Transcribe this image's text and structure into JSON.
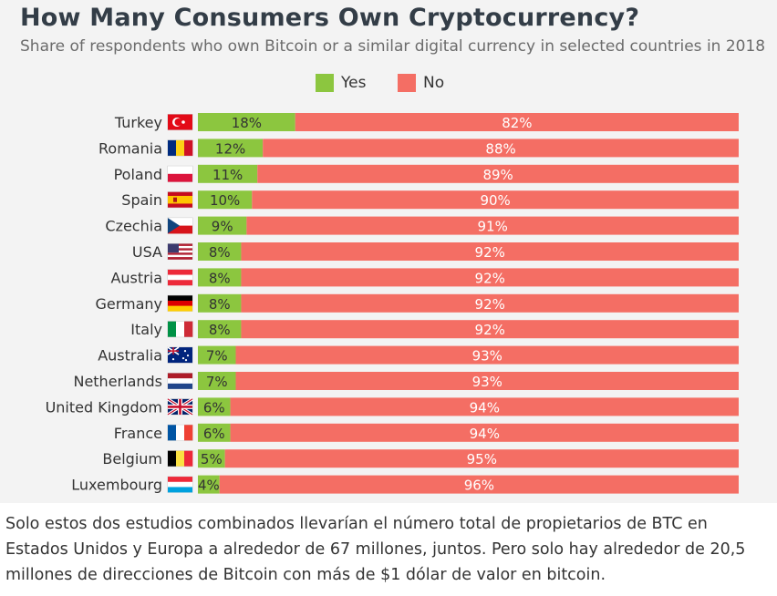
{
  "header": {
    "title": "How Many Consumers Own Cryptocurrency?",
    "subtitle": "Share of respondents who own Bitcoin or a similar digital currency in selected countries in 2018"
  },
  "legend": {
    "yes_label": "Yes",
    "no_label": "No"
  },
  "colors": {
    "yes": "#8cc63f",
    "no": "#f46e64",
    "background": "#f3f3f3"
  },
  "chart_data": {
    "type": "bar",
    "orientation": "horizontal",
    "stacked": true,
    "title": "How Many Consumers Own Cryptocurrency?",
    "subtitle": "Share of respondents who own Bitcoin or a similar digital currency in selected countries in 2018",
    "categories": [
      "Turkey",
      "Romania",
      "Poland",
      "Spain",
      "Czechia",
      "USA",
      "Austria",
      "Germany",
      "Italy",
      "Australia",
      "Netherlands",
      "United Kingdom",
      "France",
      "Belgium",
      "Luxembourg"
    ],
    "series": [
      {
        "name": "Yes",
        "values": [
          18,
          12,
          11,
          10,
          9,
          8,
          8,
          8,
          8,
          7,
          7,
          6,
          6,
          5,
          4
        ]
      },
      {
        "name": "No",
        "values": [
          82,
          88,
          89,
          90,
          91,
          92,
          92,
          92,
          92,
          93,
          93,
          94,
          94,
          95,
          96
        ]
      }
    ],
    "data_labels": {
      "Yes": [
        "18%",
        "12%",
        "11%",
        "10%",
        "9%",
        "8%",
        "8%",
        "8%",
        "8%",
        "7%",
        "7%",
        "6%",
        "6%",
        "5%",
        "4%"
      ],
      "No": [
        "82%",
        "88%",
        "89%",
        "90%",
        "91%",
        "92%",
        "92%",
        "92%",
        "92%",
        "93%",
        "93%",
        "94%",
        "94%",
        "95%",
        "96%"
      ]
    },
    "flags": [
      "flag-turkey-icon",
      "flag-romania-icon",
      "flag-poland-icon",
      "flag-spain-icon",
      "flag-czechia-icon",
      "flag-usa-icon",
      "flag-austria-icon",
      "flag-germany-icon",
      "flag-italy-icon",
      "flag-australia-icon",
      "flag-netherlands-icon",
      "flag-united-kingdom-icon",
      "flag-france-icon",
      "flag-belgium-icon",
      "flag-luxembourg-icon"
    ],
    "xlim": [
      0,
      100
    ],
    "unit": "%",
    "legend_position": "top-center"
  },
  "description": {
    "text": "Solo estos dos estudios combinados llevarían el número total de propietarios de BTC en Estados Unidos y Europa a alrededor de 67 millones, juntos. Pero solo hay alrededor de 20,5 millones de direcciones de Bitcoin con más de $1 dólar de valor en bitcoin."
  }
}
